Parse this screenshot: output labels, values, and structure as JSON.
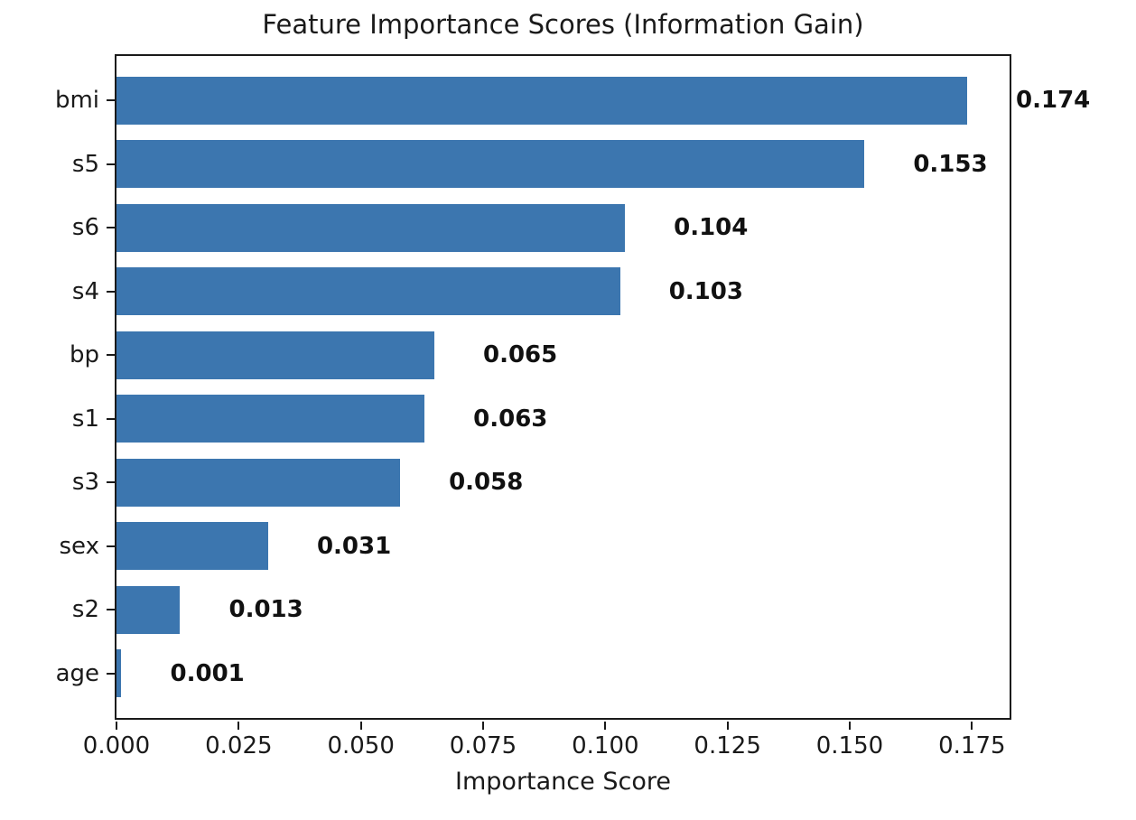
{
  "chart_data": {
    "type": "bar",
    "orientation": "horizontal",
    "title": "Feature Importance Scores (Information Gain)",
    "xlabel": "Importance Score",
    "ylabel": "",
    "categories": [
      "bmi",
      "s5",
      "s6",
      "s4",
      "bp",
      "s1",
      "s3",
      "sex",
      "s2",
      "age"
    ],
    "values": [
      0.174,
      0.153,
      0.104,
      0.103,
      0.065,
      0.063,
      0.058,
      0.031,
      0.013,
      0.001
    ],
    "value_labels": [
      "0.174",
      "0.153",
      "0.104",
      "0.103",
      "0.065",
      "0.063",
      "0.058",
      "0.031",
      "0.013",
      "0.001"
    ],
    "value_label_offset": 0.01,
    "xlim": [
      0,
      0.1827
    ],
    "x_ticks": [
      0.0,
      0.025,
      0.05,
      0.075,
      0.1,
      0.125,
      0.15,
      0.175
    ],
    "x_tick_labels": [
      "0.000",
      "0.025",
      "0.050",
      "0.075",
      "0.100",
      "0.125",
      "0.150",
      "0.175"
    ],
    "grid": false,
    "legend": null,
    "colors": {
      "bar": "#3c76af",
      "text": "#1a1a1a",
      "spine": "#1a1a1a",
      "background": "#ffffff"
    }
  }
}
